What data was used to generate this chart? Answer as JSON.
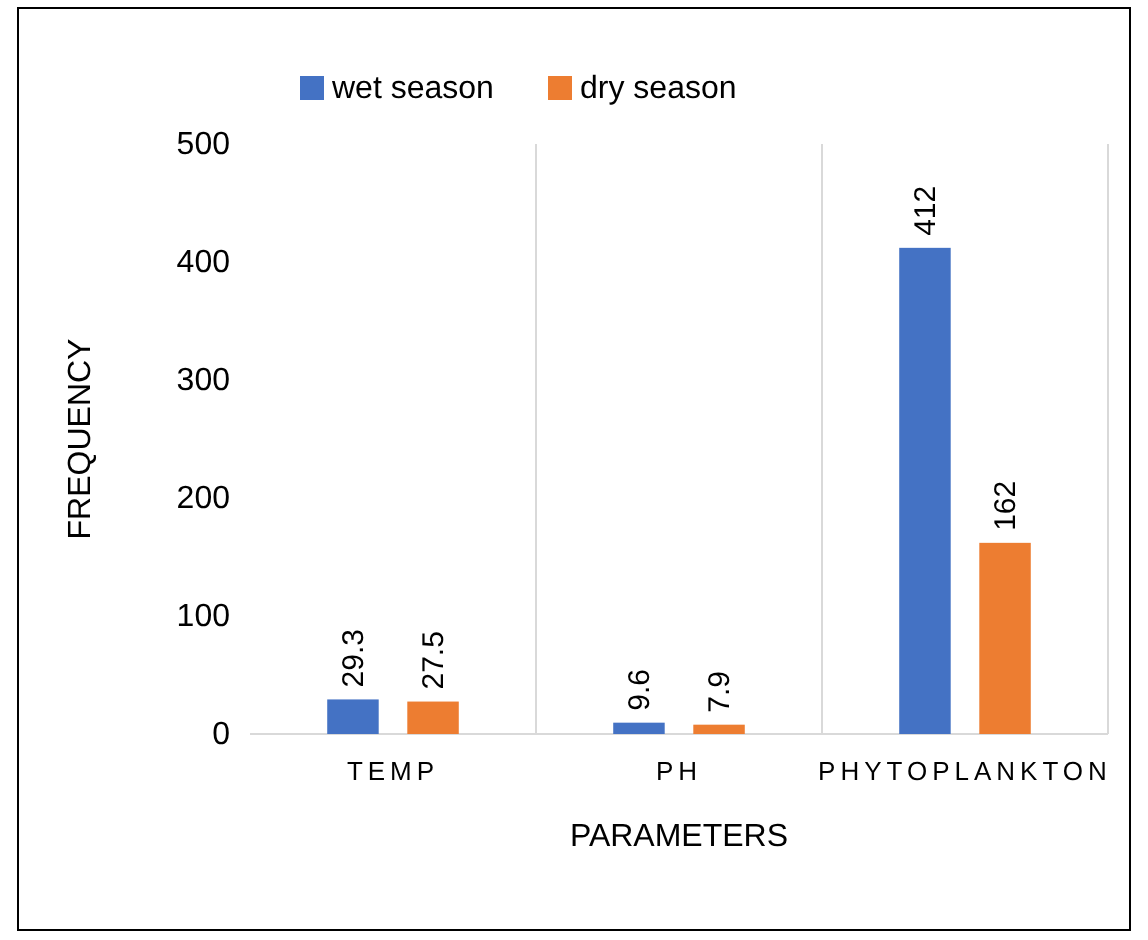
{
  "chart_data": {
    "type": "bar",
    "xlabel": "PARAMETERS",
    "ylabel": "FREQUENCY",
    "categories": [
      "TEMP",
      "PH",
      "PHYTOPLANKTON"
    ],
    "series": [
      {
        "name": "wet season",
        "color": "#4472c4",
        "values": [
          29.3,
          9.6,
          412
        ]
      },
      {
        "name": "dry season",
        "color": "#ed7d31",
        "values": [
          27.5,
          7.9,
          162
        ]
      }
    ],
    "ylim": [
      0,
      500
    ],
    "yticks": [
      0,
      100,
      200,
      300,
      400,
      500
    ],
    "grid": "x",
    "legend": "top",
    "data_labels": true
  }
}
